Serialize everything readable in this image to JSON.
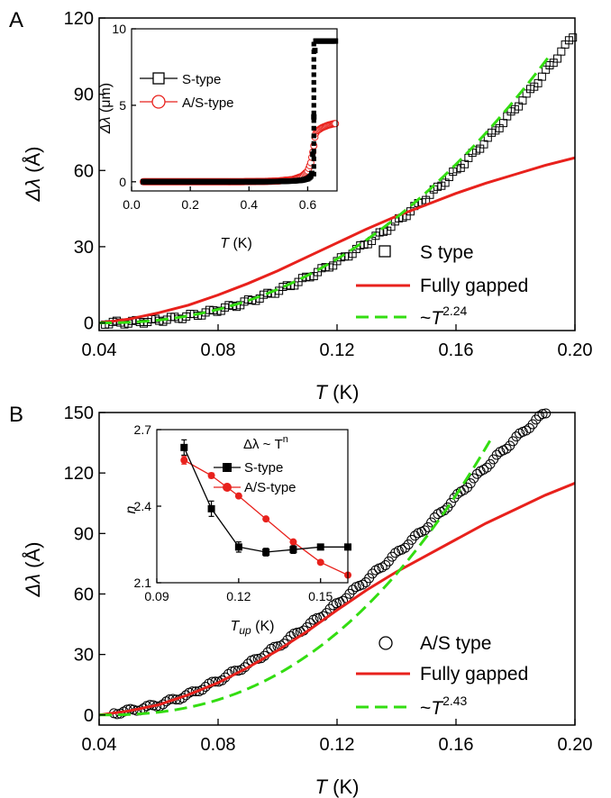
{
  "figure": {
    "panel_a_letter": "A",
    "panel_b_letter": "B"
  },
  "colors": {
    "data_black": "#000000",
    "fit_red": "#e8211c",
    "fit_green": "#33dd11"
  },
  "chart_data": [
    {
      "panel": "A",
      "type": "scatter",
      "xlabel_symbol": "T",
      "xlabel_unit": "(K)",
      "ylabel_symbol": "Δλ",
      "ylabel_unit": "(Å)",
      "xlim": [
        0.04,
        0.2
      ],
      "ylim": [
        -3,
        120
      ],
      "xticks": [
        "0.04",
        "0.08",
        "0.12",
        "0.16",
        "0.20"
      ],
      "yticks": [
        "0",
        "30",
        "60",
        "90",
        "120"
      ],
      "legend_position": "bottom-right",
      "legend": [
        {
          "marker": "open-square",
          "label": "S type"
        },
        {
          "line": "solid-red",
          "label": "Fully gapped"
        },
        {
          "line": "dashed-green",
          "label_prefix": "~",
          "label_symbol": "T",
          "label_exponent": "2.24"
        }
      ],
      "series": [
        {
          "name": "S type",
          "marker": "open-square",
          "power_law": {
            "exponent": 2.24,
            "x0": 0.04,
            "xmax": 0.2,
            "ymax": 114
          }
        },
        {
          "name": "Fully gapped",
          "style": "solid",
          "x": [
            0.04,
            0.05,
            0.06,
            0.07,
            0.08,
            0.09,
            0.1,
            0.11,
            0.12,
            0.13,
            0.14,
            0.15,
            0.16,
            0.17,
            0.18,
            0.19,
            0.2
          ],
          "y": [
            0,
            1.5,
            4,
            7,
            11,
            15.5,
            20.5,
            26,
            31.5,
            37,
            42,
            46.5,
            51,
            55,
            58.5,
            62,
            65
          ]
        },
        {
          "name": "~T2.24",
          "style": "dashed",
          "power_law": {
            "exponent": 2.24,
            "x0": 0.04,
            "xmax": 0.192,
            "ymax": 106
          }
        }
      ],
      "inset": {
        "type": "scatter",
        "xlabel_symbol": "T",
        "xlabel_unit": "(K)",
        "ylabel_symbol": "Δλ",
        "ylabel_unit": "(μm)",
        "xlim": [
          0.0,
          0.7
        ],
        "ylim": [
          -0.6,
          10
        ],
        "xticks": [
          "0.0",
          "0.2",
          "0.4",
          "0.6"
        ],
        "yticks": [
          "0",
          "5",
          "10"
        ],
        "legend_position": "top-left",
        "legend": [
          {
            "marker": "open-square",
            "label": "S-type"
          },
          {
            "marker": "open-circle",
            "label": "A/S-type"
          }
        ],
        "series": [
          {
            "name": "S-type",
            "x": [
              0.05,
              0.1,
              0.15,
              0.2,
              0.25,
              0.3,
              0.35,
              0.4,
              0.45,
              0.5,
              0.55,
              0.58,
              0.6,
              0.61,
              0.615,
              0.62,
              0.625,
              0.63,
              0.65,
              0.67,
              0.69
            ],
            "y": [
              0,
              0,
              0,
              0,
              0,
              0,
              0,
              0,
              0.01,
              0.02,
              0.05,
              0.1,
              0.2,
              0.35,
              0.6,
              3.0,
              9.2,
              9.2,
              9.2,
              9.2,
              9.2
            ]
          },
          {
            "name": "A/S-type",
            "x": [
              0.05,
              0.1,
              0.15,
              0.2,
              0.25,
              0.3,
              0.35,
              0.4,
              0.45,
              0.5,
              0.55,
              0.58,
              0.6,
              0.61,
              0.62,
              0.625,
              0.63,
              0.65,
              0.67,
              0.69
            ],
            "y": [
              0,
              0,
              0,
              0,
              0,
              0,
              0,
              0.01,
              0.02,
              0.05,
              0.15,
              0.35,
              0.7,
              1.2,
              2.2,
              3.0,
              3.3,
              3.55,
              3.7,
              3.8
            ]
          }
        ]
      }
    },
    {
      "panel": "B",
      "type": "scatter",
      "xlabel_symbol": "T",
      "xlabel_unit": "(K)",
      "ylabel_symbol": "Δλ",
      "ylabel_unit": "(Å)",
      "xlim": [
        0.04,
        0.2
      ],
      "ylim": [
        -5,
        150
      ],
      "xticks": [
        "0.04",
        "0.08",
        "0.12",
        "0.16",
        "0.20"
      ],
      "yticks": [
        "0",
        "30",
        "60",
        "90",
        "120",
        "150"
      ],
      "legend_position": "bottom-right",
      "legend": [
        {
          "marker": "open-circle",
          "label": "A/S type"
        },
        {
          "line": "solid-red",
          "label": "Fully gapped"
        },
        {
          "line": "dashed-green",
          "label_prefix": "~",
          "label_symbol": "T",
          "label_exponent": "2.43"
        }
      ],
      "series": [
        {
          "name": "A/S type",
          "marker": "open-circle",
          "x": [
            0.045,
            0.05,
            0.06,
            0.07,
            0.08,
            0.09,
            0.1,
            0.11,
            0.12,
            0.13,
            0.14,
            0.15,
            0.16,
            0.17,
            0.18,
            0.19
          ],
          "y": [
            1,
            2,
            5,
            10,
            17,
            25,
            34,
            44,
            55,
            67,
            80,
            93,
            108,
            123,
            137,
            150
          ]
        },
        {
          "name": "Fully gapped",
          "style": "solid",
          "x": [
            0.04,
            0.05,
            0.06,
            0.07,
            0.08,
            0.09,
            0.1,
            0.11,
            0.12,
            0.13,
            0.14,
            0.15,
            0.16,
            0.17,
            0.18,
            0.19,
            0.2
          ],
          "y": [
            0,
            2,
            5,
            10,
            16,
            23.5,
            32,
            41.5,
            52,
            62,
            71,
            79,
            87,
            95,
            102,
            109,
            115
          ]
        },
        {
          "name": "~T2.43",
          "style": "dashed",
          "power_law": {
            "exponent": 2.43,
            "x0": 0.04,
            "xmax": 0.173,
            "ymax": 140
          }
        }
      ],
      "inset": {
        "type": "line",
        "title_text": "Δλ ~ T",
        "title_exponent": "n",
        "xlabel_symbol": "T",
        "xlabel_subscript": "up",
        "xlabel_unit": "(K)",
        "ylabel_symbol": "n",
        "xlim": [
          0.09,
          0.16
        ],
        "ylim": [
          2.1,
          2.7
        ],
        "xticks": [
          "0.09",
          "0.12",
          "0.15"
        ],
        "yticks": [
          "2.1",
          "2.4",
          "2.7"
        ],
        "legend_position": "top-right",
        "legend": [
          {
            "marker": "filled-square",
            "label": "S-type"
          },
          {
            "marker": "filled-circle",
            "label": "A/S-type"
          }
        ],
        "series": [
          {
            "name": "S-type",
            "x": [
              0.1,
              0.11,
              0.12,
              0.13,
              0.14,
              0.15,
              0.16
            ],
            "y": [
              2.63,
              2.39,
              2.24,
              2.22,
              2.23,
              2.24,
              2.24
            ],
            "err": [
              0.03,
              0.03,
              0.02,
              0.015,
              0.015,
              0.01,
              0.01
            ]
          },
          {
            "name": "A/S-type",
            "x": [
              0.1,
              0.11,
              0.12,
              0.13,
              0.14,
              0.15,
              0.16
            ],
            "y": [
              2.58,
              2.52,
              2.44,
              2.35,
              2.26,
              2.18,
              2.13
            ],
            "err": [
              0.015,
              0.01,
              0.008,
              0.006,
              0.006,
              0.006,
              0.006
            ]
          }
        ]
      }
    }
  ]
}
